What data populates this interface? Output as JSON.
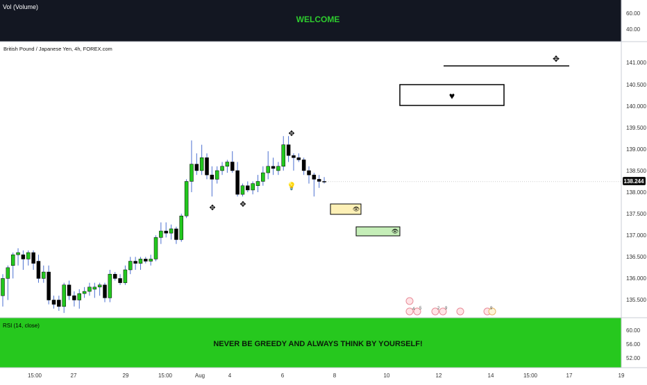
{
  "top_panel": {
    "indicator_label": "Vol (Volume)",
    "banner_text": "WELCOME",
    "scale_ticks": [
      "60.00",
      "40.00"
    ]
  },
  "main_chart": {
    "symbol_title": "British Pound / Japanese Yen, 4h, FOREX.com",
    "current_price": "138.244",
    "price_ticks": [
      "141.000",
      "140.500",
      "140.000",
      "139.500",
      "139.000",
      "138.500",
      "138.000",
      "137.500",
      "137.000",
      "136.500",
      "136.000",
      "135.500"
    ]
  },
  "rsi_panel": {
    "indicator_label": "RSI (14, close)",
    "banner_text": "NEVER BE GREEDY AND ALWAYS THINK BY YOURSELF!",
    "scale_ticks": [
      "60.00",
      "56.00",
      "52.00"
    ]
  },
  "time_axis": {
    "labels": [
      "15:00",
      "27",
      "29",
      "15:00",
      "Aug",
      "4",
      "6",
      "8",
      "10",
      "12",
      "14",
      "15:00",
      "17",
      "19"
    ]
  },
  "drawings": {
    "heart_symbol": "♥",
    "move_symbol": "✥",
    "eye_symbol": "👁",
    "bulb_symbol": "💡"
  },
  "event_markers": [
    "4",
    "5",
    "2",
    "9",
    "9"
  ],
  "colors": {
    "bull": "#22c71e",
    "bear": "#000000",
    "wick": "#4a6fd0",
    "banner_bg": "#131722",
    "banner_text": "#2ecc2e",
    "rsi_bg": "#26c81e",
    "rsi_text": "#0a1a0a",
    "yellow_box": "#fdf0b6",
    "green_box": "#c5eeb8",
    "price_label_bg": "#111111"
  },
  "chart_data": {
    "type": "candlestick",
    "timeframe": "4h",
    "ylim": [
      135.15,
      141.5
    ],
    "candles": [
      {
        "o": 135.6,
        "h": 136.1,
        "l": 135.35,
        "c": 136.0
      },
      {
        "o": 136.0,
        "h": 136.3,
        "l": 135.5,
        "c": 136.25
      },
      {
        "o": 136.3,
        "h": 136.6,
        "l": 136.0,
        "c": 136.55
      },
      {
        "o": 136.55,
        "h": 136.7,
        "l": 136.3,
        "c": 136.6
      },
      {
        "o": 136.55,
        "h": 136.65,
        "l": 136.2,
        "c": 136.45
      },
      {
        "o": 136.45,
        "h": 136.65,
        "l": 136.3,
        "c": 136.6
      },
      {
        "o": 136.6,
        "h": 136.65,
        "l": 136.2,
        "c": 136.35
      },
      {
        "o": 136.4,
        "h": 136.55,
        "l": 135.9,
        "c": 136.0
      },
      {
        "o": 136.0,
        "h": 136.3,
        "l": 135.9,
        "c": 136.15
      },
      {
        "o": 136.15,
        "h": 136.3,
        "l": 135.4,
        "c": 135.5
      },
      {
        "o": 135.5,
        "h": 135.6,
        "l": 135.3,
        "c": 135.4
      },
      {
        "o": 135.5,
        "h": 135.6,
        "l": 135.25,
        "c": 135.35
      },
      {
        "o": 135.35,
        "h": 135.9,
        "l": 135.2,
        "c": 135.85
      },
      {
        "o": 135.85,
        "h": 135.95,
        "l": 135.5,
        "c": 135.6
      },
      {
        "o": 135.6,
        "h": 135.7,
        "l": 135.35,
        "c": 135.5
      },
      {
        "o": 135.5,
        "h": 135.75,
        "l": 135.3,
        "c": 135.65
      },
      {
        "o": 135.65,
        "h": 135.8,
        "l": 135.55,
        "c": 135.7
      },
      {
        "o": 135.7,
        "h": 135.9,
        "l": 135.6,
        "c": 135.8
      },
      {
        "o": 135.75,
        "h": 135.9,
        "l": 135.55,
        "c": 135.8
      },
      {
        "o": 135.8,
        "h": 135.9,
        "l": 135.6,
        "c": 135.85
      },
      {
        "o": 135.85,
        "h": 135.9,
        "l": 135.45,
        "c": 135.55
      },
      {
        "o": 135.55,
        "h": 136.2,
        "l": 135.45,
        "c": 136.1
      },
      {
        "o": 136.1,
        "h": 136.15,
        "l": 135.95,
        "c": 136.0
      },
      {
        "o": 136.0,
        "h": 136.1,
        "l": 135.85,
        "c": 135.9
      },
      {
        "o": 135.9,
        "h": 136.3,
        "l": 135.85,
        "c": 136.2
      },
      {
        "o": 136.2,
        "h": 136.5,
        "l": 136.1,
        "c": 136.4
      },
      {
        "o": 136.4,
        "h": 136.5,
        "l": 136.2,
        "c": 136.35
      },
      {
        "o": 136.35,
        "h": 136.5,
        "l": 136.2,
        "c": 136.45
      },
      {
        "o": 136.45,
        "h": 136.5,
        "l": 136.35,
        "c": 136.4
      },
      {
        "o": 136.4,
        "h": 136.55,
        "l": 136.3,
        "c": 136.45
      },
      {
        "o": 136.45,
        "h": 137.0,
        "l": 136.4,
        "c": 136.95
      },
      {
        "o": 136.95,
        "h": 137.3,
        "l": 136.8,
        "c": 137.1
      },
      {
        "o": 137.1,
        "h": 137.3,
        "l": 136.95,
        "c": 137.05
      },
      {
        "o": 137.05,
        "h": 137.25,
        "l": 136.9,
        "c": 137.15
      },
      {
        "o": 137.15,
        "h": 137.2,
        "l": 136.8,
        "c": 136.9
      },
      {
        "o": 136.9,
        "h": 137.5,
        "l": 136.85,
        "c": 137.45
      },
      {
        "o": 137.45,
        "h": 138.3,
        "l": 137.4,
        "c": 138.25
      },
      {
        "o": 138.25,
        "h": 139.2,
        "l": 138.0,
        "c": 138.65
      },
      {
        "o": 138.65,
        "h": 138.9,
        "l": 138.4,
        "c": 138.5
      },
      {
        "o": 138.5,
        "h": 139.1,
        "l": 138.4,
        "c": 138.8
      },
      {
        "o": 138.8,
        "h": 138.9,
        "l": 138.3,
        "c": 138.4
      },
      {
        "o": 138.4,
        "h": 138.6,
        "l": 137.9,
        "c": 138.3
      },
      {
        "o": 138.3,
        "h": 138.6,
        "l": 138.2,
        "c": 138.5
      },
      {
        "o": 138.5,
        "h": 138.7,
        "l": 138.4,
        "c": 138.6
      },
      {
        "o": 138.6,
        "h": 138.75,
        "l": 138.45,
        "c": 138.7
      },
      {
        "o": 138.7,
        "h": 138.95,
        "l": 138.45,
        "c": 138.5
      },
      {
        "o": 138.5,
        "h": 138.7,
        "l": 137.9,
        "c": 137.95
      },
      {
        "o": 137.95,
        "h": 138.2,
        "l": 137.9,
        "c": 138.15
      },
      {
        "o": 138.15,
        "h": 138.25,
        "l": 138.0,
        "c": 138.05
      },
      {
        "o": 138.05,
        "h": 138.25,
        "l": 137.95,
        "c": 138.2
      },
      {
        "o": 138.15,
        "h": 138.4,
        "l": 138.0,
        "c": 138.25
      },
      {
        "o": 138.25,
        "h": 138.6,
        "l": 138.15,
        "c": 138.45
      },
      {
        "o": 138.45,
        "h": 138.95,
        "l": 138.3,
        "c": 138.6
      },
      {
        "o": 138.6,
        "h": 138.8,
        "l": 138.4,
        "c": 138.55
      },
      {
        "o": 138.5,
        "h": 138.7,
        "l": 138.4,
        "c": 138.6
      },
      {
        "o": 138.6,
        "h": 139.3,
        "l": 138.5,
        "c": 139.1
      },
      {
        "o": 139.1,
        "h": 139.3,
        "l": 138.7,
        "c": 138.85
      },
      {
        "o": 138.85,
        "h": 138.9,
        "l": 138.5,
        "c": 138.8
      },
      {
        "o": 138.8,
        "h": 138.9,
        "l": 138.7,
        "c": 138.75
      },
      {
        "o": 138.75,
        "h": 138.8,
        "l": 138.4,
        "c": 138.5
      },
      {
        "o": 138.5,
        "h": 138.6,
        "l": 138.2,
        "c": 138.4
      },
      {
        "o": 138.4,
        "h": 138.45,
        "l": 137.9,
        "c": 138.3
      },
      {
        "o": 138.3,
        "h": 138.4,
        "l": 138.1,
        "c": 138.25
      },
      {
        "o": 138.25,
        "h": 138.35,
        "l": 138.2,
        "c": 138.24
      }
    ],
    "current_price": 138.244
  }
}
